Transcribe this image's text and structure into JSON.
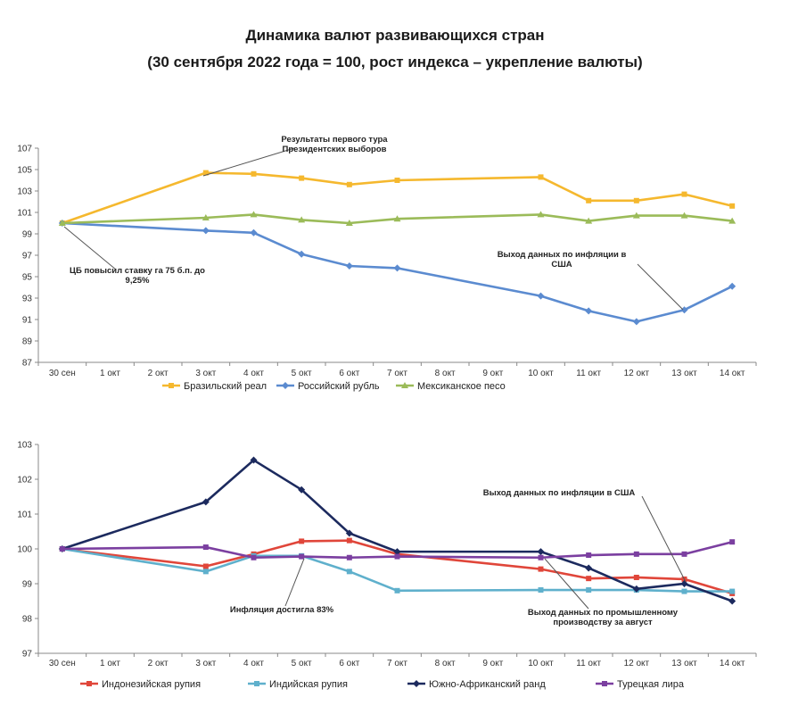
{
  "header": {
    "title": "Динамика валют развивающихся стран",
    "subtitle": "(30 сентября 2022 года = 100, рост индекса – укрепление валюты)"
  },
  "chart_data": [
    {
      "type": "line",
      "categories": [
        "30 сен",
        "1 окт",
        "2 окт",
        "3 окт",
        "4 окт",
        "5 окт",
        "6 окт",
        "7 окт",
        "8 окт",
        "9 окт",
        "10 окт",
        "11 окт",
        "12 окт",
        "13 окт",
        "14 окт"
      ],
      "ylim": [
        87,
        107
      ],
      "yticks": [
        87,
        89,
        91,
        93,
        95,
        97,
        99,
        101,
        103,
        105,
        107
      ],
      "grid": false,
      "legend": "bottom",
      "series": [
        {
          "name": "Бразильский реал",
          "color": "#f5b82e",
          "marker": "square",
          "values": [
            100,
            null,
            null,
            104.7,
            104.6,
            104.2,
            103.6,
            104.0,
            null,
            null,
            104.3,
            102.1,
            102.1,
            102.7,
            101.6
          ]
        },
        {
          "name": "Российский рубль",
          "color": "#5b8bd0",
          "marker": "diamond",
          "values": [
            100,
            null,
            null,
            99.3,
            99.1,
            97.1,
            96.0,
            95.8,
            null,
            null,
            93.2,
            91.8,
            90.8,
            91.9,
            94.1
          ]
        },
        {
          "name": "Мексиканское песо",
          "color": "#9bbb59",
          "marker": "triangle",
          "values": [
            100,
            null,
            null,
            100.5,
            100.8,
            100.3,
            100.0,
            100.4,
            null,
            null,
            100.8,
            100.2,
            100.7,
            100.7,
            100.2
          ]
        }
      ],
      "annotations": [
        {
          "lines": [
            "Результаты первого тура",
            "Президентских выборов"
          ]
        },
        {
          "lines": [
            "ЦБ повысил ставку га 75 б.п. до",
            "9,25%"
          ]
        },
        {
          "lines": [
            "Выход данных по инфляции в",
            "США"
          ]
        }
      ]
    },
    {
      "type": "line",
      "categories": [
        "30 сен",
        "1 окт",
        "2 окт",
        "3 окт",
        "4 окт",
        "5 окт",
        "6 окт",
        "7 окт",
        "8 окт",
        "9 окт",
        "10 окт",
        "11 окт",
        "12 окт",
        "13 окт",
        "14 окт"
      ],
      "ylim": [
        97,
        103
      ],
      "yticks": [
        97,
        98,
        99,
        100,
        101,
        102,
        103
      ],
      "grid": false,
      "legend": "bottom",
      "series": [
        {
          "name": "Индонезийская рупия",
          "color": "#e0463a",
          "marker": "square",
          "values": [
            100,
            null,
            null,
            99.5,
            99.85,
            100.22,
            100.24,
            99.85,
            null,
            null,
            99.42,
            99.15,
            99.18,
            99.13,
            98.72
          ]
        },
        {
          "name": "Индийская рупия",
          "color": "#5fb0cc",
          "marker": "square",
          "values": [
            100,
            null,
            null,
            99.35,
            99.8,
            99.8,
            99.35,
            98.8,
            null,
            null,
            98.82,
            98.82,
            98.82,
            98.78,
            98.78
          ]
        },
        {
          "name": "Южно-Африканский ранд",
          "color": "#1c2a5e",
          "marker": "diamond",
          "values": [
            100,
            null,
            null,
            101.35,
            102.55,
            101.7,
            100.45,
            99.92,
            null,
            null,
            99.92,
            99.45,
            98.85,
            99.0,
            98.5
          ]
        },
        {
          "name": "Турецкая лира",
          "color": "#7b3fa0",
          "marker": "square",
          "values": [
            100,
            null,
            null,
            100.05,
            99.75,
            99.78,
            99.75,
            99.78,
            null,
            null,
            99.75,
            99.82,
            99.85,
            99.85,
            100.2
          ]
        }
      ],
      "annotations": [
        {
          "lines": [
            "Выход данных по инфляции в США"
          ]
        },
        {
          "lines": [
            "Инфляция достигла 83%"
          ]
        },
        {
          "lines": [
            "Выход данных по промышленному",
            "производству за август"
          ]
        }
      ]
    }
  ]
}
